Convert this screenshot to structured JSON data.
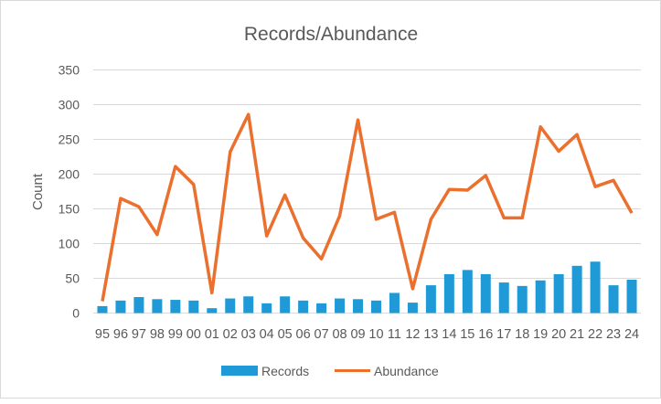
{
  "chart_data": {
    "type": "bar+line",
    "title": "Records/Abundance",
    "xlabel": "",
    "ylabel": "Count",
    "ylim": [
      0,
      350
    ],
    "yticks": [
      0,
      50,
      100,
      150,
      200,
      250,
      300,
      350
    ],
    "grid": true,
    "legend_position": "bottom",
    "categories": [
      "95",
      "96",
      "97",
      "98",
      "99",
      "00",
      "01",
      "02",
      "03",
      "04",
      "05",
      "06",
      "07",
      "08",
      "09",
      "10",
      "11",
      "12",
      "13",
      "14",
      "15",
      "16",
      "17",
      "18",
      "19",
      "20",
      "21",
      "22",
      "23",
      "24"
    ],
    "series": [
      {
        "name": "Records",
        "type": "bar",
        "color": "#1f9ad6",
        "values": [
          10,
          18,
          23,
          20,
          19,
          18,
          7,
          21,
          24,
          14,
          24,
          18,
          14,
          21,
          20,
          18,
          29,
          15,
          40,
          56,
          62,
          56,
          44,
          39,
          47,
          56,
          68,
          74,
          40,
          48
        ]
      },
      {
        "name": "Abundance",
        "type": "line",
        "color": "#eb6f2d",
        "values": [
          17,
          165,
          153,
          113,
          211,
          185,
          29,
          232,
          286,
          111,
          170,
          108,
          78,
          140,
          278,
          135,
          145,
          35,
          135,
          178,
          177,
          198,
          137,
          137,
          268,
          233,
          257,
          182,
          191,
          144
        ]
      }
    ]
  }
}
